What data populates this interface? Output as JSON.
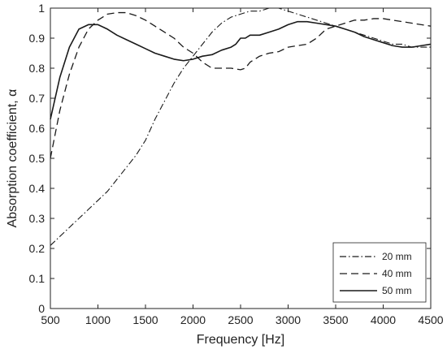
{
  "chart_data": {
    "type": "line",
    "title": "",
    "xlabel": "Frequency [Hz]",
    "ylabel": "Absorption coefficient, α",
    "xlim": [
      500,
      4500
    ],
    "ylim": [
      0,
      1
    ],
    "xticks": [
      500,
      1000,
      1500,
      2000,
      2500,
      3000,
      3500,
      4000,
      4500
    ],
    "yticks": [
      0,
      0.1,
      0.2,
      0.3,
      0.4,
      0.5,
      0.6,
      0.7,
      0.8,
      0.9,
      1
    ],
    "xtick_labels": [
      "500",
      "1000",
      "1500",
      "2000",
      "2500",
      "3000",
      "3500",
      "4000",
      "4500"
    ],
    "ytick_labels": [
      "0",
      "0.1",
      "0.2",
      "0.3",
      "0.4",
      "0.5",
      "0.6",
      "0.7",
      "0.8",
      "0.9",
      "1"
    ],
    "grid": false,
    "legend_position": "bottom-right",
    "series": [
      {
        "name": "20 mm",
        "style": "dashdot",
        "color": "#1a1a1a",
        "x": [
          500,
          600,
          700,
          800,
          900,
          1000,
          1100,
          1200,
          1300,
          1400,
          1500,
          1600,
          1700,
          1800,
          1900,
          2000,
          2100,
          2200,
          2300,
          2400,
          2500,
          2600,
          2700,
          2800,
          2900,
          3000,
          3100,
          3200,
          3300,
          3400,
          3500,
          3600,
          3700,
          3800,
          3900,
          4000,
          4100,
          4200,
          4300,
          4400,
          4500
        ],
        "y": [
          0.21,
          0.24,
          0.27,
          0.3,
          0.33,
          0.36,
          0.39,
          0.43,
          0.47,
          0.51,
          0.56,
          0.63,
          0.69,
          0.75,
          0.8,
          0.84,
          0.88,
          0.92,
          0.95,
          0.97,
          0.98,
          0.99,
          0.99,
          1.0,
          1.0,
          0.99,
          0.98,
          0.97,
          0.96,
          0.95,
          0.94,
          0.93,
          0.92,
          0.91,
          0.9,
          0.89,
          0.88,
          0.88,
          0.87,
          0.87,
          0.87
        ]
      },
      {
        "name": "40 mm",
        "style": "dashed",
        "color": "#1a1a1a",
        "x": [
          500,
          600,
          700,
          800,
          900,
          1000,
          1100,
          1200,
          1300,
          1400,
          1500,
          1600,
          1700,
          1800,
          1900,
          2000,
          2100,
          2200,
          2300,
          2400,
          2500,
          2550,
          2600,
          2700,
          2800,
          2900,
          3000,
          3100,
          3200,
          3300,
          3400,
          3500,
          3600,
          3700,
          3800,
          3900,
          4000,
          4100,
          4200,
          4300,
          4400,
          4500
        ],
        "y": [
          0.5,
          0.66,
          0.78,
          0.87,
          0.93,
          0.96,
          0.98,
          0.985,
          0.985,
          0.975,
          0.96,
          0.94,
          0.92,
          0.9,
          0.87,
          0.85,
          0.82,
          0.8,
          0.8,
          0.8,
          0.795,
          0.8,
          0.82,
          0.84,
          0.85,
          0.855,
          0.87,
          0.875,
          0.88,
          0.9,
          0.93,
          0.94,
          0.95,
          0.96,
          0.96,
          0.965,
          0.965,
          0.96,
          0.955,
          0.95,
          0.945,
          0.94
        ]
      },
      {
        "name": "50 mm",
        "style": "solid",
        "color": "#1a1a1a",
        "x": [
          500,
          600,
          700,
          800,
          900,
          1000,
          1100,
          1200,
          1300,
          1400,
          1500,
          1600,
          1700,
          1800,
          1900,
          2000,
          2100,
          2200,
          2300,
          2400,
          2450,
          2500,
          2550,
          2600,
          2700,
          2800,
          2900,
          3000,
          3100,
          3200,
          3300,
          3400,
          3500,
          3600,
          3700,
          3800,
          3900,
          4000,
          4100,
          4200,
          4300,
          4400,
          4500
        ],
        "y": [
          0.63,
          0.77,
          0.87,
          0.93,
          0.945,
          0.945,
          0.93,
          0.91,
          0.895,
          0.88,
          0.865,
          0.85,
          0.84,
          0.83,
          0.825,
          0.83,
          0.84,
          0.845,
          0.86,
          0.87,
          0.88,
          0.9,
          0.9,
          0.91,
          0.91,
          0.92,
          0.93,
          0.945,
          0.955,
          0.955,
          0.95,
          0.945,
          0.94,
          0.93,
          0.92,
          0.905,
          0.895,
          0.885,
          0.875,
          0.87,
          0.87,
          0.875,
          0.88
        ]
      }
    ]
  }
}
